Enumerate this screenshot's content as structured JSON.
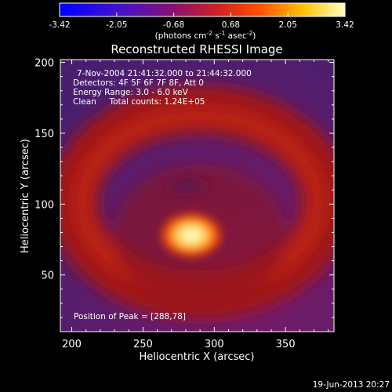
{
  "chart_data": {
    "type": "heatmap",
    "title": "Reconstructed RHESSI Image",
    "xlabel": "Heliocentric X (arcsec)",
    "ylabel": "Heliocentric Y (arcsec)",
    "xlim": [
      192,
      384
    ],
    "ylim": [
      10,
      202
    ],
    "x_ticks": [
      200,
      250,
      300,
      350
    ],
    "y_ticks": [
      50,
      100,
      150,
      200
    ],
    "grid": false,
    "colorbar": {
      "location": "top",
      "ticks": [
        "-3.42",
        "-2.05",
        "-0.68",
        "0.68",
        "2.05",
        "3.42"
      ],
      "label_html": "(photons cm⁻² s⁻¹ asec⁻²)",
      "label_parts": [
        "(photons cm",
        "-2",
        " s",
        "-1",
        " asec",
        "-2",
        ")"
      ],
      "range": [
        -3.42,
        3.42
      ]
    },
    "annotations": {
      "time": "7-Nov-2004 21:41:32.000 to 21:44:32.000",
      "detectors": "Detectors: 4F 5F 6F 7F 8F, Att 0",
      "energy": "Energy Range: 3.0 - 6.0 keV",
      "clean": "Clean     Total counts: 1.24E+05",
      "peak": "Position of Peak = [288,78]"
    },
    "peak": {
      "x": 288,
      "y": 78,
      "value": 3.42
    },
    "features": {
      "ring": {
        "center_x": 283,
        "center_y": 115,
        "radius_arcsec": 65,
        "value": 0.9
      },
      "inner_hole": {
        "center_x": 284,
        "center_y": 128,
        "value": -0.3
      }
    },
    "background_value": -1.0
  },
  "footer": {
    "date": "19-Jun-2013 20:27"
  }
}
